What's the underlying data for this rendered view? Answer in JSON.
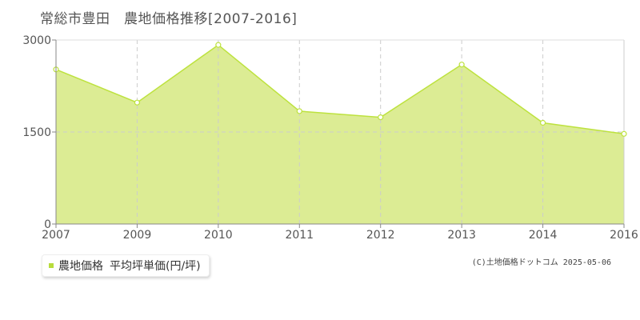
{
  "title": "常総市豊田　農地価格推移[2007-2016]",
  "legend": {
    "series_label": "農地価格",
    "unit_label": "平均坪単価(円/坪)",
    "color": "#b8dc3c"
  },
  "copyright": "(C)土地価格ドットコム 2025-05-06",
  "colors": {
    "area_fill": "#dcec94",
    "line": "#bde23e",
    "grid": "#cccccc",
    "axis": "#888888",
    "text": "#555555"
  },
  "chart_data": {
    "type": "area",
    "x": [
      "2007",
      "2009",
      "2010",
      "2011",
      "2012",
      "2013",
      "2014",
      "2016"
    ],
    "series": [
      {
        "values": [
          2520,
          1980,
          2920,
          1840,
          1740,
          2600,
          1650,
          1470
        ]
      }
    ],
    "ylim": [
      0,
      3000
    ],
    "yticks": [
      0,
      1500,
      3000
    ],
    "xlabel": "",
    "ylabel": "",
    "grid": true
  }
}
